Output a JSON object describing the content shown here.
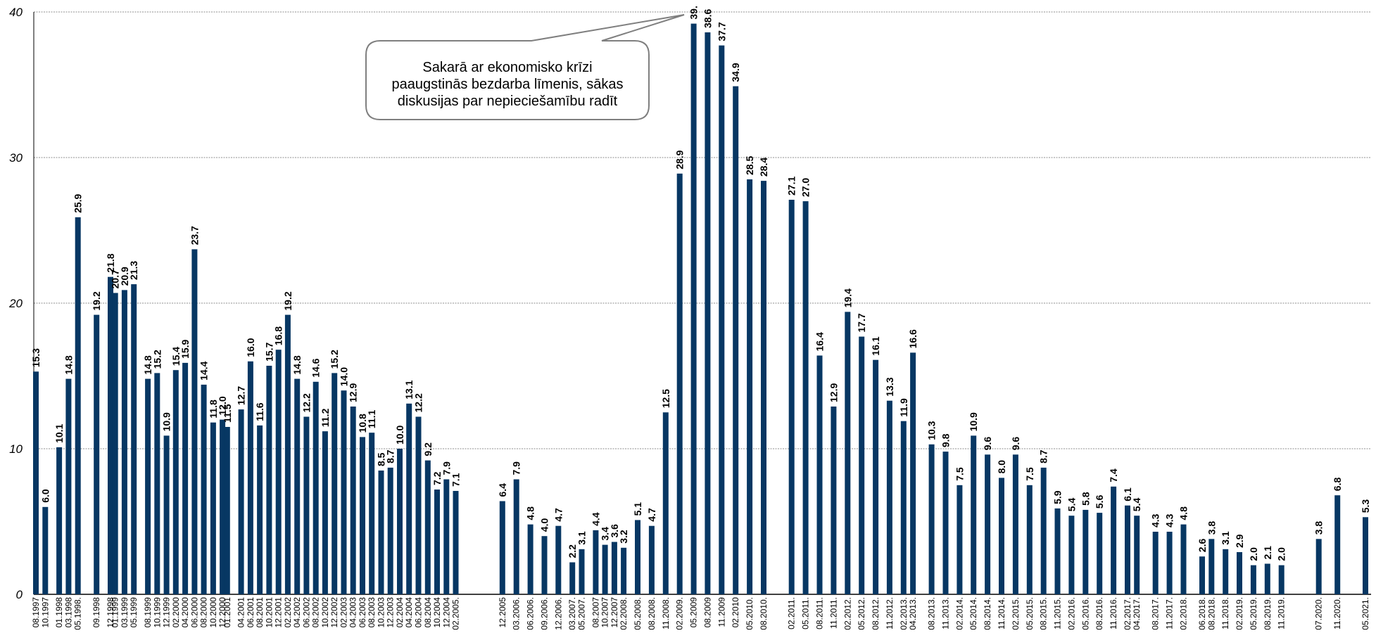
{
  "chart_data": {
    "type": "bar",
    "title": "",
    "xlabel": "",
    "ylabel": "",
    "ylim": [
      0,
      40
    ],
    "yticks": [
      0,
      10,
      20,
      30,
      40
    ],
    "grid": true,
    "bar_color": "#073763",
    "annotation": {
      "lines": [
        "Sakarā ar ekonomisko krīzi",
        "paaugstinās bezdarba līmenis, sākas",
        "diskusijas par nepieciešamību radīt"
      ],
      "points_to": "05.2009"
    },
    "points": [
      {
        "x": "08.1997",
        "y": 15.3,
        "label": "15.3"
      },
      {
        "x": "10.1997",
        "y": 6.0,
        "label": "6.0"
      },
      {
        "x": "01.1998",
        "y": 10.1,
        "label": "10.1"
      },
      {
        "x": "03.1998",
        "y": 14.8,
        "label": "14.8"
      },
      {
        "x": "05.1998.",
        "y": 25.9,
        "label": "25.9"
      },
      {
        "x": "09.1998",
        "y": 19.2,
        "label": "19.2"
      },
      {
        "x": "12.1998",
        "y": 21.8,
        "label": "21.8"
      },
      {
        "x": "01.1999",
        "y": 20.7,
        "label": "20.7"
      },
      {
        "x": "03.1999",
        "y": 20.9,
        "label": "20.9"
      },
      {
        "x": "05.1999",
        "y": 21.3,
        "label": "21.3"
      },
      {
        "x": "08.1999",
        "y": 14.8,
        "label": "14.8"
      },
      {
        "x": "10.1999",
        "y": 15.2,
        "label": "15.2"
      },
      {
        "x": "12.1999",
        "y": 10.9,
        "label": "10.9"
      },
      {
        "x": "02.2000",
        "y": 15.4,
        "label": "15.4"
      },
      {
        "x": "04.2000",
        "y": 15.9,
        "label": "15.9"
      },
      {
        "x": "06.2000",
        "y": 23.7,
        "label": "23.7"
      },
      {
        "x": "08.2000",
        "y": 14.4,
        "label": "14.4"
      },
      {
        "x": "10.2000",
        "y": 11.8,
        "label": "11.8"
      },
      {
        "x": "12.2000",
        "y": 12.0,
        "label": "12.0"
      },
      {
        "x": "01.2001",
        "y": 11.5,
        "label": "11.5"
      },
      {
        "x": "04.2001",
        "y": 12.7,
        "label": "12.7"
      },
      {
        "x": "06.2001",
        "y": 16.0,
        "label": "16.0"
      },
      {
        "x": "08.2001",
        "y": 11.6,
        "label": "11.6"
      },
      {
        "x": "10.2001",
        "y": 15.7,
        "label": "15.7"
      },
      {
        "x": "12.2001",
        "y": 16.8,
        "label": "16.8"
      },
      {
        "x": "02.2002",
        "y": 19.2,
        "label": "19.2"
      },
      {
        "x": "04.2002",
        "y": 14.8,
        "label": "14.8"
      },
      {
        "x": "06.2002",
        "y": 12.2,
        "label": "12.2"
      },
      {
        "x": "08.2002",
        "y": 14.6,
        "label": "14.6"
      },
      {
        "x": "10.2002",
        "y": 11.2,
        "label": "11.2"
      },
      {
        "x": "12.2002",
        "y": 15.2,
        "label": "15.2"
      },
      {
        "x": "02.2003",
        "y": 14.0,
        "label": "14.0"
      },
      {
        "x": "04.2003",
        "y": 12.9,
        "label": "12.9"
      },
      {
        "x": "06.2003",
        "y": 10.8,
        "label": "10.8"
      },
      {
        "x": "08.2003",
        "y": 11.1,
        "label": "11.1"
      },
      {
        "x": "10.2003",
        "y": 8.5,
        "label": "8.5"
      },
      {
        "x": "12.2003",
        "y": 8.7,
        "label": "8.7"
      },
      {
        "x": "02.2004",
        "y": 10.0,
        "label": "10.0"
      },
      {
        "x": "04.2004",
        "y": 13.1,
        "label": "13.1"
      },
      {
        "x": "06.2004",
        "y": 12.2,
        "label": "12.2"
      },
      {
        "x": "08.2004",
        "y": 9.2,
        "label": "9.2"
      },
      {
        "x": "10.2004",
        "y": 7.2,
        "label": "7.2"
      },
      {
        "x": "12.2004",
        "y": 7.9,
        "label": "7.9"
      },
      {
        "x": "02.2005.",
        "y": 7.1,
        "label": "7.1"
      },
      {
        "x": "12.2005",
        "y": 6.4,
        "label": "6.4"
      },
      {
        "x": "03.2006.",
        "y": 7.9,
        "label": "7.9"
      },
      {
        "x": "06.2006.",
        "y": 4.8,
        "label": "4.8"
      },
      {
        "x": "09.2006.",
        "y": 4.0,
        "label": "4.0"
      },
      {
        "x": "12.2006.",
        "y": 4.7,
        "label": "4.7"
      },
      {
        "x": "03.2007.",
        "y": 2.2,
        "label": "2.2"
      },
      {
        "x": "05.2007.",
        "y": 3.1,
        "label": "3.1"
      },
      {
        "x": "08.2007",
        "y": 4.4,
        "label": "4.4"
      },
      {
        "x": "10.2007",
        "y": 3.4,
        "label": "3.4"
      },
      {
        "x": "12.2007",
        "y": 3.6,
        "label": "3.6"
      },
      {
        "x": "02.2008.",
        "y": 3.2,
        "label": "3.2"
      },
      {
        "x": "05.2008.",
        "y": 5.1,
        "label": "5.1"
      },
      {
        "x": "08.2008.",
        "y": 4.7,
        "label": "4.7"
      },
      {
        "x": "11.2008.",
        "y": 12.5,
        "label": "12.5"
      },
      {
        "x": "02.2009.",
        "y": 28.9,
        "label": "28.9"
      },
      {
        "x": "05.2009",
        "y": 39.2,
        "label": "39."
      },
      {
        "x": "08.2009",
        "y": 38.6,
        "label": "38.6"
      },
      {
        "x": "11.2009",
        "y": 37.7,
        "label": "37.7"
      },
      {
        "x": "02.2010",
        "y": 34.9,
        "label": "34.9"
      },
      {
        "x": "05.2010.",
        "y": 28.5,
        "label": "28.5"
      },
      {
        "x": "08.2010.",
        "y": 28.4,
        "label": "28.4"
      },
      {
        "x": "02.2011.",
        "y": 27.1,
        "label": "27.1"
      },
      {
        "x": "05.2011.",
        "y": 27.0,
        "label": "27.0"
      },
      {
        "x": "08.2011.",
        "y": 16.4,
        "label": "16.4"
      },
      {
        "x": "11.2011.",
        "y": 12.9,
        "label": "12.9"
      },
      {
        "x": "02.2012.",
        "y": 19.4,
        "label": "19.4"
      },
      {
        "x": "05.2012.",
        "y": 17.7,
        "label": "17.7"
      },
      {
        "x": "08.2012.",
        "y": 16.1,
        "label": "16.1"
      },
      {
        "x": "11.2012.",
        "y": 13.3,
        "label": "13.3"
      },
      {
        "x": "02.2013.",
        "y": 11.9,
        "label": "11.9"
      },
      {
        "x": "04.2013.",
        "y": 16.6,
        "label": "16.6"
      },
      {
        "x": "08.2013.",
        "y": 10.3,
        "label": "10.3"
      },
      {
        "x": "11.2013.",
        "y": 9.8,
        "label": "9.8"
      },
      {
        "x": "02.2014.",
        "y": 7.5,
        "label": "7.5"
      },
      {
        "x": "05.2014.",
        "y": 10.9,
        "label": "10.9"
      },
      {
        "x": "08.2014.",
        "y": 9.6,
        "label": "9.6"
      },
      {
        "x": "11.2014.",
        "y": 8.0,
        "label": "8.0"
      },
      {
        "x": "02.2015.",
        "y": 9.6,
        "label": "9.6"
      },
      {
        "x": "05.2015.",
        "y": 7.5,
        "label": "7.5"
      },
      {
        "x": "08.2015.",
        "y": 8.7,
        "label": "8.7"
      },
      {
        "x": "11.2015.",
        "y": 5.9,
        "label": "5.9"
      },
      {
        "x": "02.2016.",
        "y": 5.4,
        "label": "5.4"
      },
      {
        "x": "05.2016.",
        "y": 5.8,
        "label": "5.8"
      },
      {
        "x": "08.2016.",
        "y": 5.6,
        "label": "5.6"
      },
      {
        "x": "11.2016.",
        "y": 7.4,
        "label": "7.4"
      },
      {
        "x": "02.2017.",
        "y": 6.1,
        "label": "6.1"
      },
      {
        "x": "04.2017.",
        "y": 5.4,
        "label": "5.4"
      },
      {
        "x": "08.2017.",
        "y": 4.3,
        "label": "4.3"
      },
      {
        "x": "11.2017.",
        "y": 4.3,
        "label": "4.3"
      },
      {
        "x": "02.2018.",
        "y": 4.8,
        "label": "4.8"
      },
      {
        "x": "06.2018.",
        "y": 2.6,
        "label": "2.6"
      },
      {
        "x": "08.2018.",
        "y": 3.8,
        "label": "3.8"
      },
      {
        "x": "11.2018.",
        "y": 3.1,
        "label": "3.1"
      },
      {
        "x": "02.2019.",
        "y": 2.9,
        "label": "2.9"
      },
      {
        "x": "05.2019.",
        "y": 2.0,
        "label": "2.0"
      },
      {
        "x": "08.2019.",
        "y": 2.1,
        "label": "2.1"
      },
      {
        "x": "11.2019.",
        "y": 2.0,
        "label": "2.0"
      },
      {
        "x": "07.2020.",
        "y": 3.8,
        "label": "3.8"
      },
      {
        "x": "11.2020.",
        "y": 6.8,
        "label": "6.8"
      },
      {
        "x": "05.2021.",
        "y": 5.3,
        "label": "5.3"
      }
    ]
  }
}
